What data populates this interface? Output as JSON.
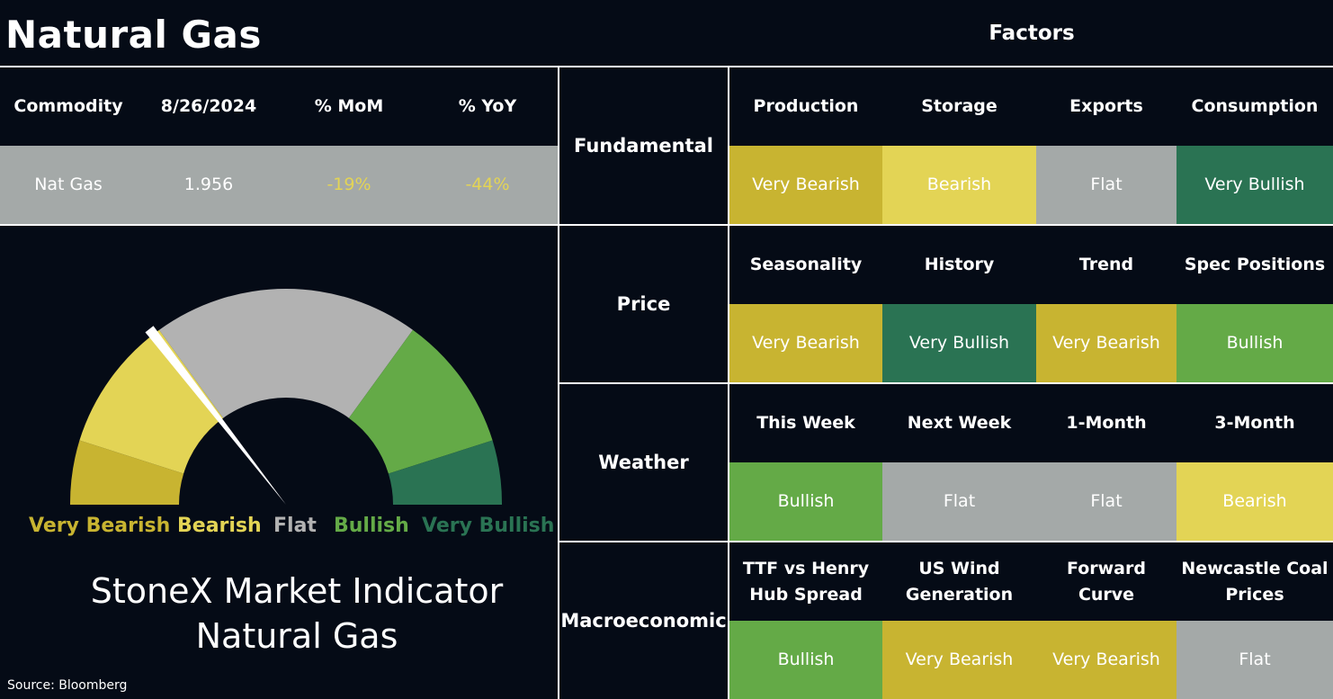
{
  "header": {
    "title": "Natural Gas",
    "factors_title": "Factors"
  },
  "commodity_table": {
    "headers": [
      "Commodity",
      "8/26/2024",
      "% MoM",
      "% YoY"
    ],
    "row": [
      "Nat Gas",
      "1.956",
      "-19%",
      "-44%"
    ],
    "row_bg": "#a4a9a8",
    "negative_color": "#e3d455"
  },
  "gauge": {
    "legend": [
      "Very Bearish",
      "Bearish",
      "Flat",
      "Bullish",
      "Very Bullish"
    ],
    "legend_colors": [
      "#c8b431",
      "#e3d455",
      "#b2b2b2",
      "#64aa47",
      "#2a7353"
    ],
    "indicator_title": [
      "StoneX Market Indicator",
      "Natural Gas"
    ]
  },
  "source": "Source: Bloomberg",
  "colors": {
    "Very Bearish": "#c8b431",
    "Bearish": "#e3d455",
    "Flat": "#a4a9a8",
    "Bullish": "#64aa47",
    "Very Bullish": "#2a7353"
  },
  "factors": [
    {
      "category": "Fundamental",
      "items": [
        {
          "label": "Production",
          "value": "Very Bearish"
        },
        {
          "label": "Storage",
          "value": "Bearish"
        },
        {
          "label": "Exports",
          "value": "Flat"
        },
        {
          "label": "Consumption",
          "value": "Very Bullish"
        }
      ]
    },
    {
      "category": "Price",
      "items": [
        {
          "label": "Seasonality",
          "value": "Very Bearish"
        },
        {
          "label": "History",
          "value": "Very Bullish"
        },
        {
          "label": "Trend",
          "value": "Very Bearish"
        },
        {
          "label": "Spec Positions",
          "value": "Bullish"
        }
      ]
    },
    {
      "category": "Weather",
      "items": [
        {
          "label": "This Week",
          "value": "Bullish"
        },
        {
          "label": "Next Week",
          "value": "Flat"
        },
        {
          "label": "1-Month",
          "value": "Flat"
        },
        {
          "label": "3-Month",
          "value": "Bearish"
        }
      ]
    },
    {
      "category": "Macroeconomic",
      "items": [
        {
          "label": "TTF vs Henry Hub Spread",
          "label_lines": [
            "TTF vs Henry",
            "Hub Spread"
          ],
          "value": "Bullish"
        },
        {
          "label": "US Wind Generation",
          "label_lines": [
            "US Wind",
            "Generation"
          ],
          "value": "Very Bearish"
        },
        {
          "label": "Forward Curve",
          "label_lines": [
            "Forward",
            "Curve"
          ],
          "value": "Very Bearish"
        },
        {
          "label": "Newcastle Coal Prices",
          "label_lines": [
            "Newcastle Coal",
            "Prices"
          ],
          "value": "Flat"
        }
      ]
    }
  ]
}
